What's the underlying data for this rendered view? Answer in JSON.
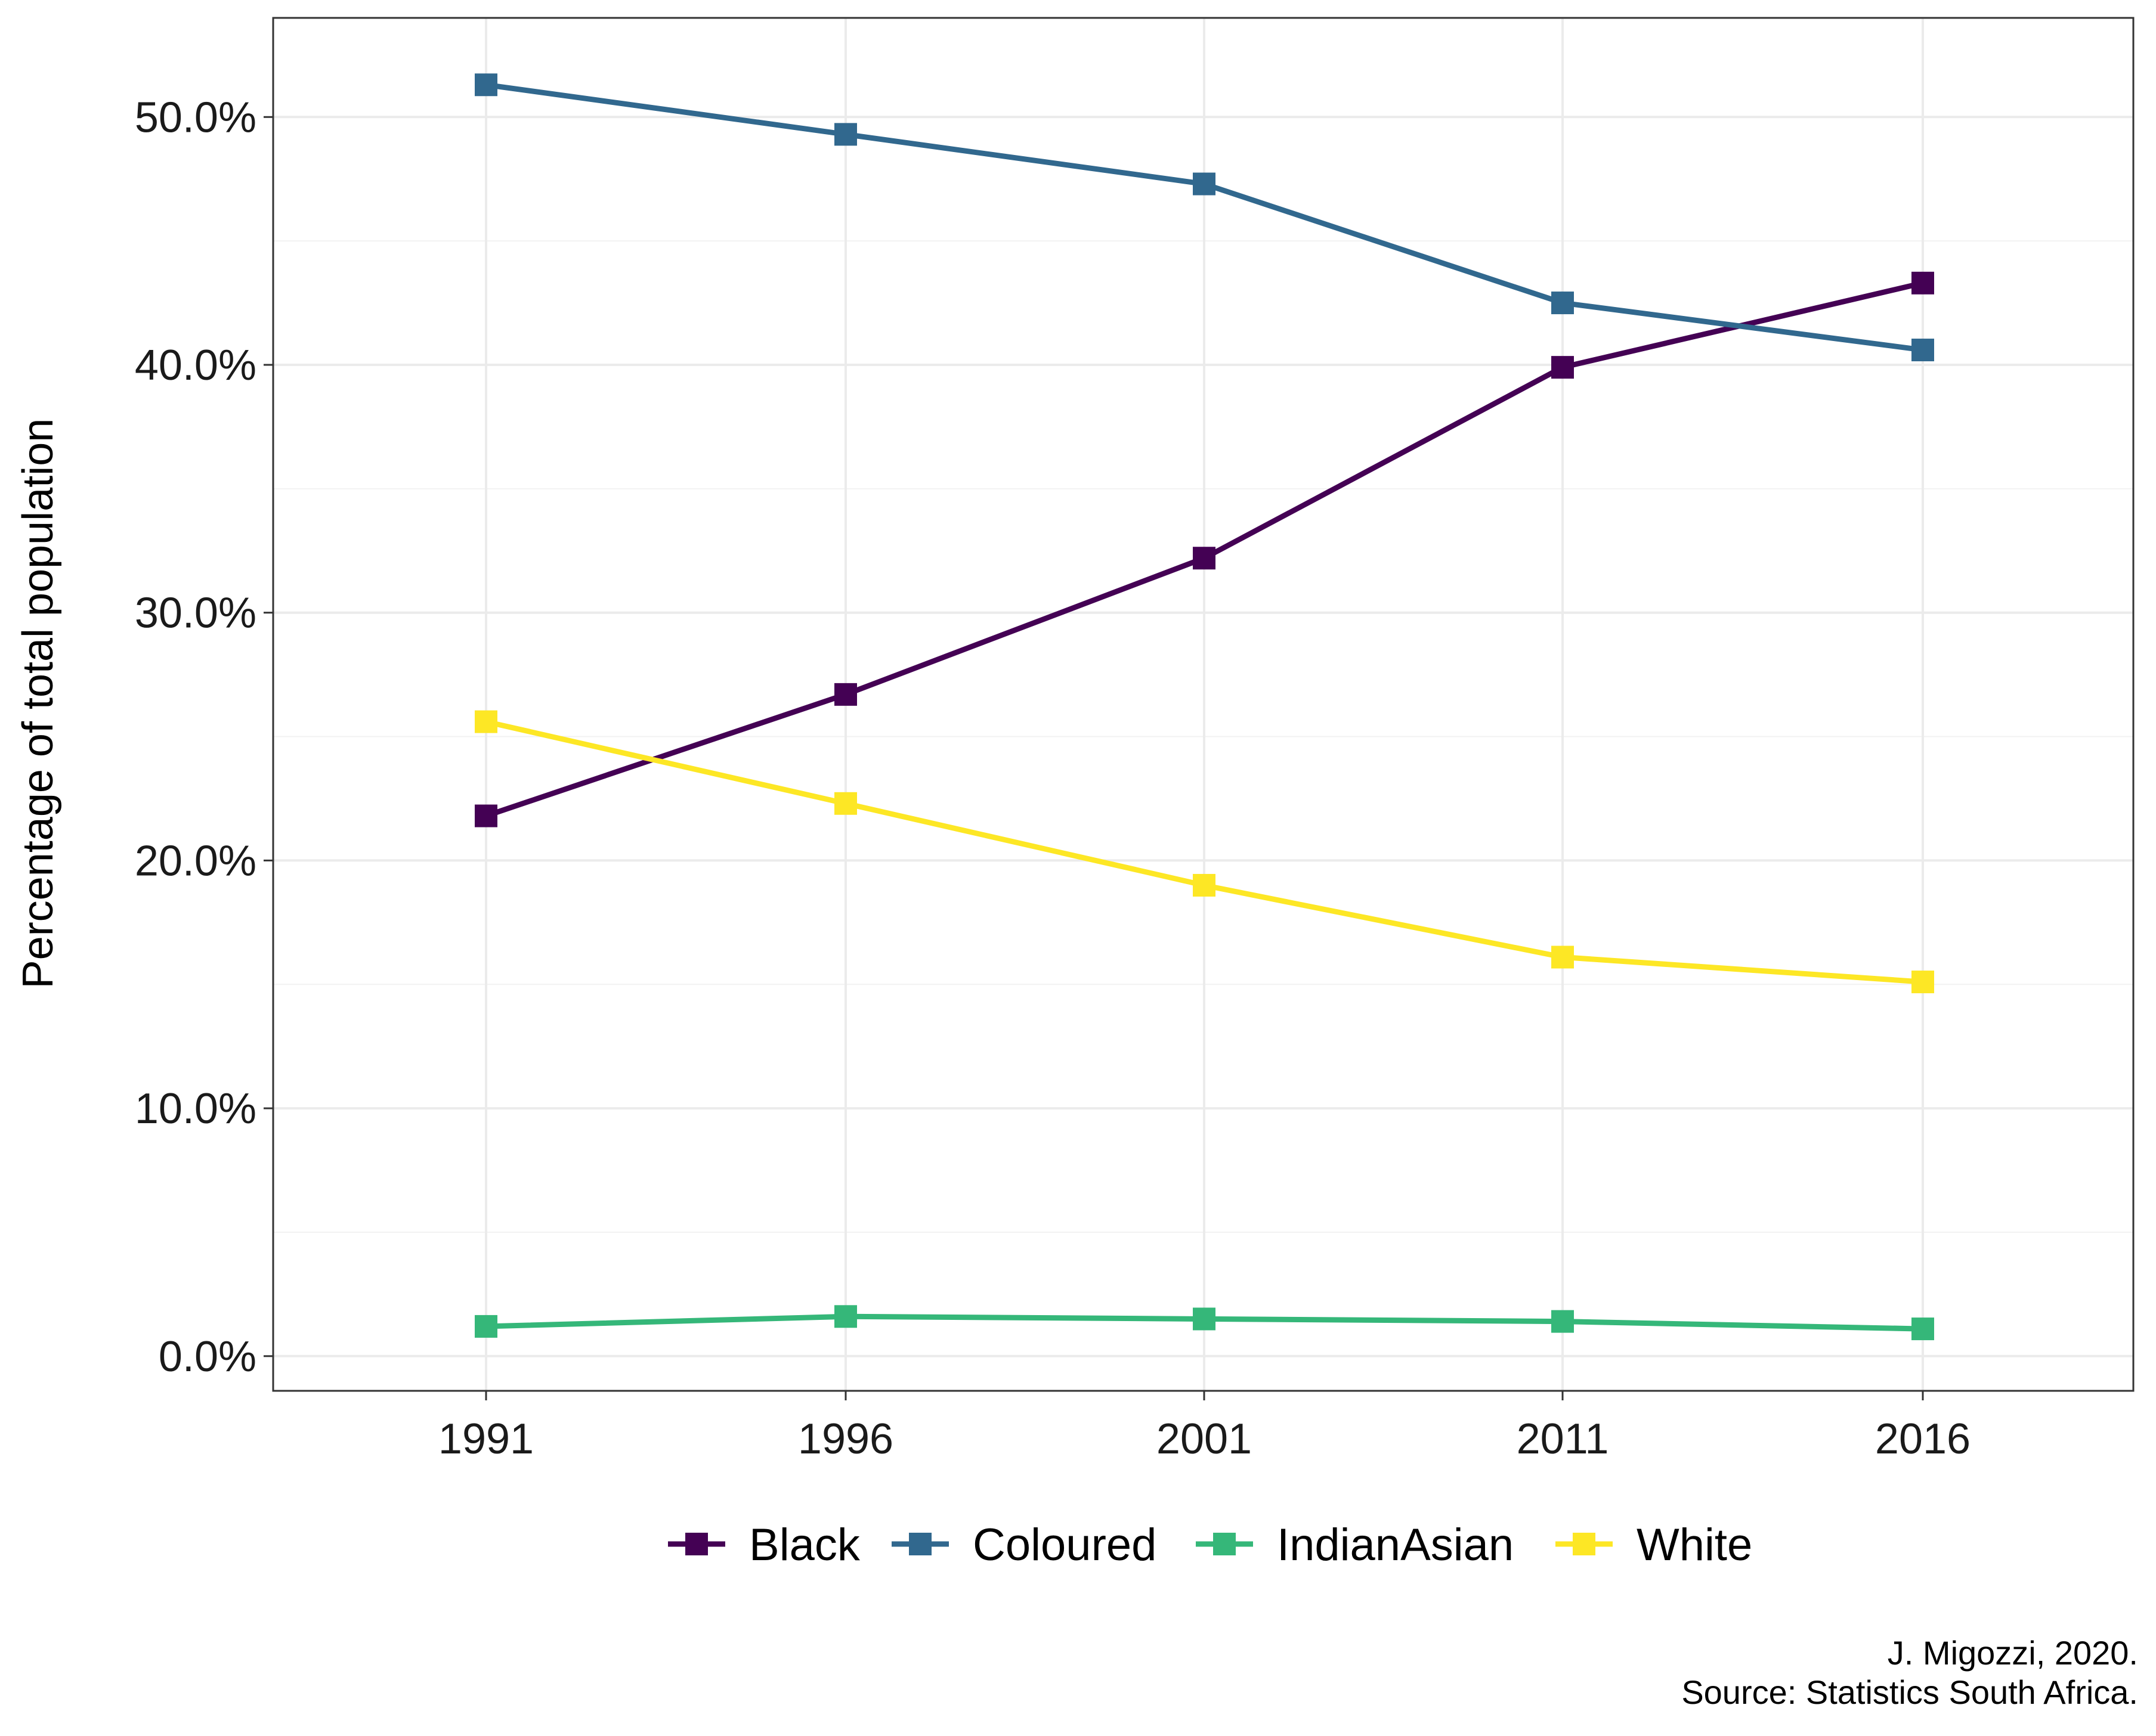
{
  "chart_data": {
    "type": "line",
    "title": "",
    "xlabel": "",
    "ylabel": "Percentage of total population",
    "x": [
      "1991",
      "1996",
      "2001",
      "2011",
      "2016"
    ],
    "y_ticks": [
      "0.0%",
      "10.0%",
      "20.0%",
      "30.0%",
      "40.0%",
      "50.0%"
    ],
    "y_tick_values": [
      0,
      10,
      20,
      30,
      40,
      50
    ],
    "ylim": [
      -1.4,
      54.0
    ],
    "grid": true,
    "legend_position": "bottom",
    "series": [
      {
        "name": "Black",
        "color": "#440154",
        "values": [
          21.8,
          26.7,
          32.2,
          39.9,
          43.3
        ]
      },
      {
        "name": "Coloured",
        "color": "#31688E",
        "values": [
          51.3,
          49.3,
          47.3,
          42.5,
          40.6
        ]
      },
      {
        "name": "IndianAsian",
        "color": "#35B779",
        "values": [
          1.2,
          1.6,
          1.5,
          1.4,
          1.1
        ]
      },
      {
        "name": "White",
        "color": "#FDE725",
        "values": [
          25.6,
          22.3,
          19.0,
          16.1,
          15.1
        ]
      }
    ]
  },
  "caption": {
    "line1": "J. Migozzi, 2020.",
    "line2": "Source: Statistics South Africa."
  }
}
